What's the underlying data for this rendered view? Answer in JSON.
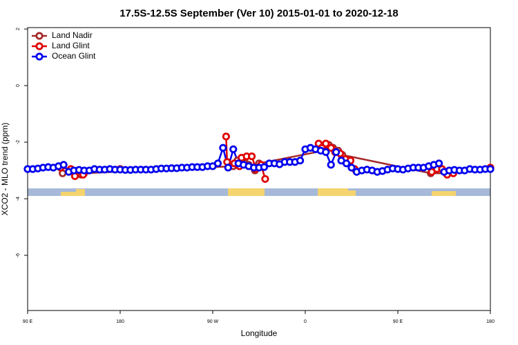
{
  "chart_data": {
    "type": "line",
    "title": "17.5S-12.5S September (Ver 10)   2015-01-01 to 2020-12-18",
    "xlabel": "Longitude",
    "ylabel": "XCO2 - MLO trend (ppm)",
    "xlim": [
      90,
      540
    ],
    "ylim": [
      -7.95,
      2.05
    ],
    "xticks": [
      {
        "value": 90,
        "label": "90 E"
      },
      180,
      {
        "value": 270,
        "label": "90 W"
      },
      {
        "value": 360,
        "label": "0"
      },
      {
        "value": 450,
        "label": "90 E"
      },
      {
        "value": 540,
        "label": "180"
      }
    ],
    "yticks": [
      2,
      0,
      -2,
      -4,
      -6
    ],
    "legend": "top-left",
    "series": [
      {
        "name": "Land Nadir",
        "color": "#a52a2a",
        "x": [
          124,
          142,
          145,
          290,
          294,
          302,
          305,
          311,
          315,
          378,
          383,
          387,
          392,
          396,
          482,
          499
        ],
        "values": [
          -3.1,
          -3.15,
          -3.1,
          -2.85,
          -2.65,
          -2.75,
          -2.8,
          -3.0,
          -2.75,
          -2.3,
          -2.1,
          -2.2,
          -2.3,
          -2.45,
          -3.1,
          -3.1
        ]
      },
      {
        "name": "Land Glint",
        "color": "#e00000",
        "x": [
          122,
          132,
          136,
          144,
          150,
          180,
          190,
          283,
          284,
          291,
          296,
          298,
          303,
          308,
          312,
          317,
          321,
          330,
          373,
          376,
          380,
          385,
          389,
          394,
          399,
          404,
          408,
          420,
          483,
          488,
          493,
          498,
          504,
          540
        ],
        "values": [
          -2.9,
          -2.95,
          -3.2,
          -3.15,
          null,
          -2.95,
          null,
          -1.8,
          -2.7,
          -2.75,
          -2.85,
          -2.55,
          -2.5,
          -2.5,
          -2.95,
          -2.8,
          -3.3,
          null,
          -2.05,
          -2.2,
          -2.05,
          -2.2,
          -2.35,
          -2.4,
          -2.6,
          -2.65,
          -2.95,
          null,
          -3.05,
          -2.95,
          -2.95,
          -3.15,
          -3.1,
          -2.9
        ]
      },
      {
        "name": "Ocean Glint",
        "color": "#0000ee",
        "x": [
          90,
          95,
          100,
          105,
          110,
          115,
          120,
          125,
          130,
          135,
          140,
          145,
          150,
          155,
          160,
          165,
          170,
          175,
          180,
          185,
          190,
          195,
          200,
          205,
          210,
          215,
          220,
          225,
          230,
          235,
          240,
          245,
          250,
          255,
          260,
          265,
          270,
          275,
          280,
          285,
          290,
          295,
          300,
          305,
          310,
          315,
          320,
          325,
          330,
          335,
          340,
          345,
          350,
          355,
          360,
          365,
          370,
          375,
          380,
          385,
          390,
          395,
          400,
          405,
          410,
          415,
          420,
          425,
          430,
          435,
          440,
          445,
          450,
          455,
          460,
          465,
          470,
          475,
          480,
          485,
          490,
          495,
          500,
          505,
          510,
          515,
          520,
          525,
          530,
          535,
          540
        ],
        "values": [
          -2.95,
          -2.95,
          -2.93,
          -2.9,
          -2.88,
          -2.9,
          -2.85,
          -2.8,
          -3.05,
          -3.0,
          -2.98,
          -3.0,
          -3.0,
          -2.95,
          -2.97,
          -2.97,
          -2.95,
          -2.97,
          -2.97,
          -2.98,
          -2.98,
          -2.97,
          -2.97,
          -2.97,
          -2.97,
          -2.95,
          -2.93,
          -2.93,
          -2.92,
          -2.92,
          -2.9,
          -2.9,
          -2.88,
          -2.88,
          -2.88,
          -2.85,
          -2.85,
          -2.75,
          -2.2,
          -2.9,
          -2.25,
          -2.75,
          -2.8,
          -2.85,
          -2.9,
          -2.9,
          -2.88,
          -2.75,
          -2.75,
          -2.78,
          -2.7,
          -2.7,
          -2.7,
          -2.65,
          -2.25,
          -2.2,
          -2.25,
          -2.3,
          -2.35,
          -2.8,
          -2.35,
          -2.65,
          -2.75,
          -2.9,
          -3.05,
          -3.0,
          -2.97,
          -3.0,
          -3.05,
          -3.02,
          -2.97,
          -2.93,
          -2.95,
          -2.97,
          -2.93,
          -2.9,
          -2.9,
          -2.9,
          -2.85,
          -2.8,
          -2.75,
          -3.05,
          -3.0,
          -2.98,
          -3.0,
          -3.0,
          -2.95,
          -2.97,
          -2.97,
          -2.95,
          -2.95
        ]
      }
    ]
  }
}
